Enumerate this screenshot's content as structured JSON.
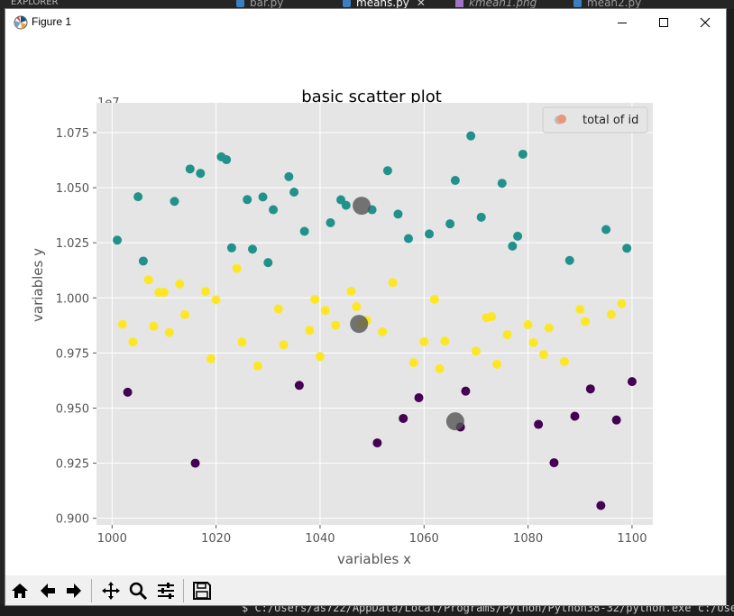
{
  "editor": {
    "explorer_label": "EXPLORER",
    "tabs": [
      "bar.py",
      "means.py",
      "kmean1.png",
      "mean2.py"
    ],
    "terminal_text": "$ C:/Users/as722/AppData/Local/Programs/Python/Python38-32/python.exe c:/Users"
  },
  "window": {
    "title": "Figure 1",
    "minimize_label": "minimize",
    "maximize_label": "maximize",
    "close_label": "close"
  },
  "toolbar": {
    "buttons": [
      "home-icon",
      "back-arrow-icon",
      "forward-arrow-icon",
      "pan-icon",
      "zoom-icon",
      "configure-subplots-icon",
      "save-icon"
    ]
  },
  "colors": {
    "purple": "#440154",
    "teal": "#21918c",
    "yellow": "#fde725",
    "centroid": "#555555",
    "legend_marker": "#e9967a",
    "axes_bg": "#e5e5e5"
  },
  "chart_data": {
    "type": "scatter",
    "title": "basic scatter plot",
    "xlabel": "variables x",
    "ylabel": "variables y",
    "offset_label": "1e7",
    "xlim": [
      997,
      1104
    ],
    "ylim": [
      8970000.0,
      10885000.0
    ],
    "xticks": [
      1000,
      1020,
      1040,
      1060,
      1080,
      1100
    ],
    "yticks": [
      9000000,
      9250000,
      9500000,
      9750000,
      10000000,
      10250000,
      10500000,
      10750000
    ],
    "ytick_labels": [
      "0.900",
      "0.925",
      "0.950",
      "0.975",
      "1.000",
      "1.025",
      "1.050",
      "1.075"
    ],
    "grid": true,
    "legend": {
      "position": "top-right",
      "label": "total of id"
    },
    "series": [
      {
        "color": "purple",
        "points": [
          [
            1003,
            9572000
          ],
          [
            1016,
            9250000
          ],
          [
            1036,
            9603000
          ],
          [
            1051,
            9342000
          ],
          [
            1056,
            9453000
          ],
          [
            1059,
            9547000
          ],
          [
            1067,
            9414000
          ],
          [
            1068,
            9577000
          ],
          [
            1082,
            9426000
          ],
          [
            1085,
            9252000
          ],
          [
            1089,
            9463000
          ],
          [
            1092,
            9587000
          ],
          [
            1094,
            9058000
          ],
          [
            1097,
            9446000
          ],
          [
            1100,
            9620000
          ]
        ]
      },
      {
        "color": "teal",
        "points": [
          [
            1001,
            10262000
          ],
          [
            1005,
            10459000
          ],
          [
            1006,
            10167000
          ],
          [
            1012,
            10438000
          ],
          [
            1015,
            10585000
          ],
          [
            1017,
            10565000
          ],
          [
            1021,
            10640000
          ],
          [
            1022,
            10627000
          ],
          [
            1023,
            10227000
          ],
          [
            1026,
            10446000
          ],
          [
            1027,
            10221000
          ],
          [
            1029,
            10458000
          ],
          [
            1030,
            10160000
          ],
          [
            1031,
            10400000
          ],
          [
            1034,
            10550000
          ],
          [
            1035,
            10480000
          ],
          [
            1037,
            10302000
          ],
          [
            1042,
            10341000
          ],
          [
            1044,
            10445000
          ],
          [
            1045,
            10420000
          ],
          [
            1050,
            10400000
          ],
          [
            1053,
            10577000
          ],
          [
            1055,
            10380000
          ],
          [
            1057,
            10269000
          ],
          [
            1061,
            10290000
          ],
          [
            1065,
            10336000
          ],
          [
            1066,
            10533000
          ],
          [
            1069,
            10735000
          ],
          [
            1071,
            10366000
          ],
          [
            1075,
            10520000
          ],
          [
            1077,
            10235000
          ],
          [
            1078,
            10280000
          ],
          [
            1079,
            10652000
          ],
          [
            1087,
            10800000
          ],
          [
            1088,
            10170000
          ],
          [
            1095,
            10310000
          ],
          [
            1099,
            10225000
          ]
        ]
      },
      {
        "color": "yellow",
        "points": [
          [
            1002,
            9880000
          ],
          [
            1004,
            9800000
          ],
          [
            1007,
            10082000
          ],
          [
            1008,
            9871000
          ],
          [
            1009,
            10025000
          ],
          [
            1010,
            10025000
          ],
          [
            1011,
            9843000
          ],
          [
            1013,
            10063000
          ],
          [
            1014,
            9924000
          ],
          [
            1018,
            10029000
          ],
          [
            1019,
            9724000
          ],
          [
            1020,
            9991000
          ],
          [
            1024,
            10134000
          ],
          [
            1025,
            9800000
          ],
          [
            1028,
            9691000
          ],
          [
            1032,
            9950000
          ],
          [
            1033,
            9787000
          ],
          [
            1038,
            9853000
          ],
          [
            1039,
            9993000
          ],
          [
            1040,
            9734000
          ],
          [
            1041,
            9943000
          ],
          [
            1043,
            9876000
          ],
          [
            1046,
            10030000
          ],
          [
            1047,
            9960000
          ],
          [
            1048,
            9880000
          ],
          [
            1049,
            9898000
          ],
          [
            1052,
            9846000
          ],
          [
            1054,
            10069000
          ],
          [
            1058,
            9706000
          ],
          [
            1060,
            9801000
          ],
          [
            1062,
            9993000
          ],
          [
            1063,
            9679000
          ],
          [
            1064,
            9804000
          ],
          [
            1070,
            9758000
          ],
          [
            1072,
            9910000
          ],
          [
            1073,
            9915000
          ],
          [
            1074,
            9699000
          ],
          [
            1076,
            9833000
          ],
          [
            1080,
            9879000
          ],
          [
            1081,
            9797000
          ],
          [
            1083,
            9743000
          ],
          [
            1084,
            9864000
          ],
          [
            1087,
            9711000
          ],
          [
            1090,
            9948000
          ],
          [
            1091,
            9893000
          ],
          [
            1096,
            9925000
          ],
          [
            1098,
            9974000
          ]
        ]
      }
    ],
    "centroids": [
      [
        1048,
        10418000
      ],
      [
        1047.5,
        9882000
      ],
      [
        1066,
        9440000
      ]
    ]
  }
}
